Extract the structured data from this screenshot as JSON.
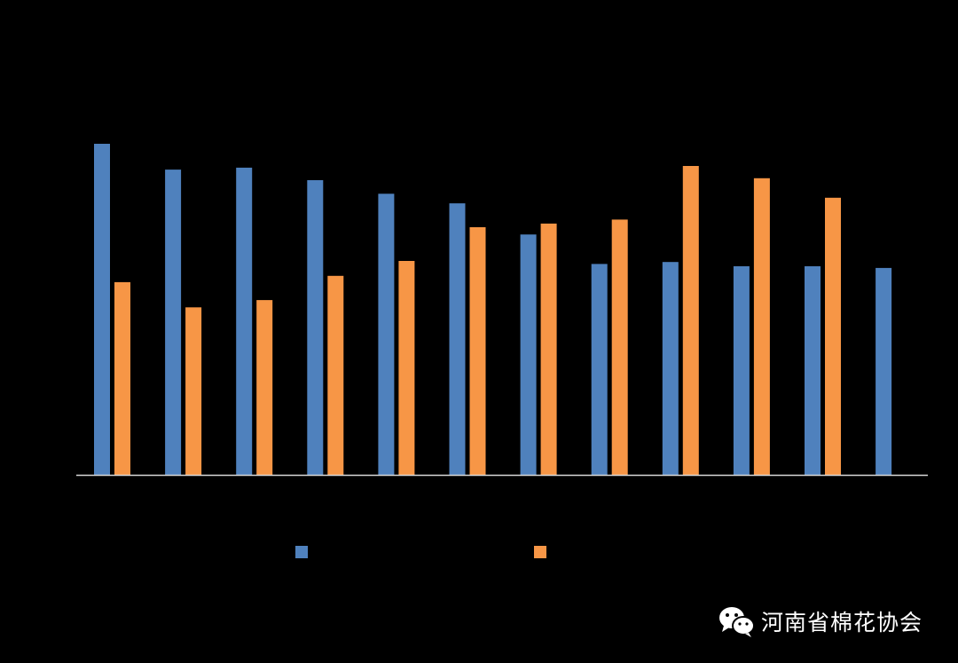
{
  "chart_data": {
    "type": "bar",
    "categories": [
      "",
      "",
      "",
      "",
      "",
      "",
      "",
      "",
      "",
      "",
      "",
      ""
    ],
    "series": [
      {
        "color": "#4f81bd",
        "values": [
          100,
          92.2,
          92.8,
          89.0,
          84.9,
          82.0,
          72.6,
          63.7,
          64.3,
          63.0,
          63.0,
          62.5
        ]
      },
      {
        "color": "#f79646",
        "values": [
          58.2,
          50.6,
          52.8,
          60.1,
          64.6,
          74.8,
          75.9,
          77.1,
          93.3,
          89.6,
          83.7,
          null
        ]
      }
    ],
    "ylim": [
      0,
      115
    ],
    "grid": false,
    "legend": "bottom-center",
    "title": "",
    "xlabel": "",
    "ylabel": ""
  },
  "watermark": {
    "text": "河南省棉花协会",
    "icon": "wechat-icon",
    "color": "#ffffff"
  }
}
